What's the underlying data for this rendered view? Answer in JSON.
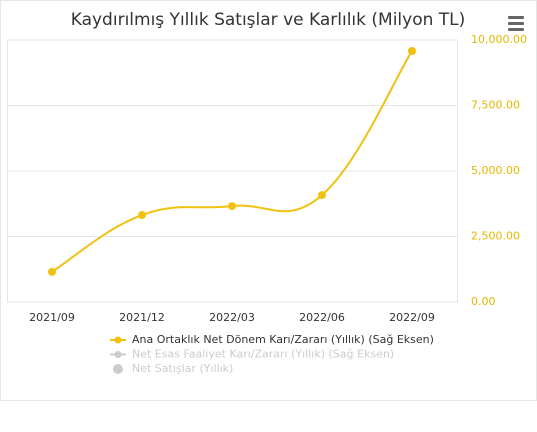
{
  "chart_data": {
    "type": "line",
    "title": "Kaydırılmış Yıllık Satışlar ve Karlılık (Milyon TL)",
    "categories": [
      "2021/09",
      "2021/12",
      "2022/03",
      "2022/06",
      "2022/09"
    ],
    "series": [
      {
        "name": "Ana Ortaklık Net Dönem Karı/Zararı (Yıllık) (Sağ Eksen)",
        "color": "#f0c20f",
        "axis": "y2",
        "values": [
          1150,
          3320,
          3660,
          4080,
          9580
        ]
      },
      {
        "name": "Net Esas Faaliyet Karı/Zararı (Yıllık) (Sağ Eksen)",
        "color": "#cccccc",
        "axis": "y2",
        "visible": false
      },
      {
        "name": "Net Satışlar (Yıllık)",
        "color": "#cccccc",
        "visible": false
      }
    ],
    "y2lim": [
      0,
      10000
    ],
    "y2ticks": [
      {
        "value": 0,
        "label": "0.00"
      },
      {
        "value": 2500,
        "label": "2,500.00"
      },
      {
        "value": 5000,
        "label": "5,000.00"
      },
      {
        "value": 7500,
        "label": "7,500.00"
      },
      {
        "value": 10000,
        "label": "10,000.00"
      }
    ],
    "grid": true
  }
}
